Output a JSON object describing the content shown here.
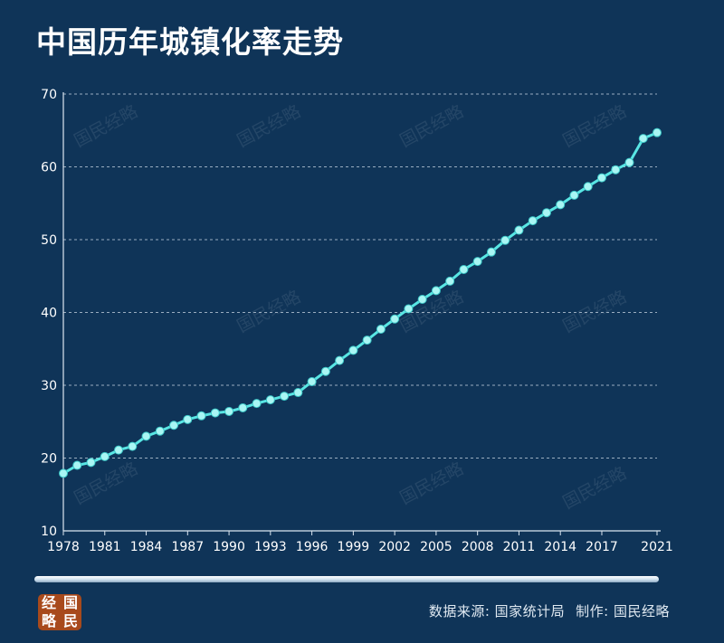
{
  "title": "中国历年城镇化率走势",
  "watermark": "国民经略",
  "logo": {
    "chars": [
      "经",
      "国",
      "略",
      "民"
    ]
  },
  "source": {
    "data_label": "数据来源: 国家统计局",
    "made_label": "制作: 国民经略"
  },
  "colors": {
    "background": "#0f3458",
    "line": "#58e6e4",
    "marker": "#a9f6f4",
    "grid": "#c9d6e3",
    "axis_text": "#ffffff",
    "logo": "#a84a1c"
  },
  "chart_data": {
    "type": "line",
    "title": "中国历年城镇化率走势",
    "xlabel": "",
    "ylabel": "",
    "ylim": [
      10,
      70
    ],
    "yticks": [
      10,
      20,
      30,
      40,
      50,
      60,
      70
    ],
    "xlim": [
      1978,
      2021
    ],
    "xticks": [
      1978,
      1981,
      1984,
      1987,
      1990,
      1993,
      1996,
      1999,
      2002,
      2005,
      2008,
      2011,
      2014,
      2017,
      2021
    ],
    "grid": true,
    "legend": "none",
    "series": [
      {
        "x": [
          1978,
          1979,
          1980,
          1981,
          1982,
          1983,
          1984,
          1985,
          1986,
          1987,
          1988,
          1989,
          1990,
          1991,
          1992,
          1993,
          1994,
          1995,
          1996,
          1997,
          1998,
          1999,
          2000,
          2001,
          2002,
          2003,
          2004,
          2005,
          2006,
          2007,
          2008,
          2009,
          2010,
          2011,
          2012,
          2013,
          2014,
          2015,
          2016,
          2017,
          2018,
          2019,
          2020,
          2021
        ],
        "values": [
          17.9,
          19.0,
          19.4,
          20.2,
          21.1,
          21.6,
          23.0,
          23.7,
          24.5,
          25.3,
          25.8,
          26.2,
          26.4,
          26.9,
          27.5,
          28.0,
          28.5,
          29.0,
          30.5,
          31.9,
          33.4,
          34.8,
          36.2,
          37.7,
          39.1,
          40.5,
          41.8,
          43.0,
          44.3,
          45.9,
          47.0,
          48.3,
          49.9,
          51.3,
          52.6,
          53.7,
          54.8,
          56.1,
          57.3,
          58.5,
          59.6,
          60.6,
          63.9,
          64.7
        ]
      }
    ]
  }
}
